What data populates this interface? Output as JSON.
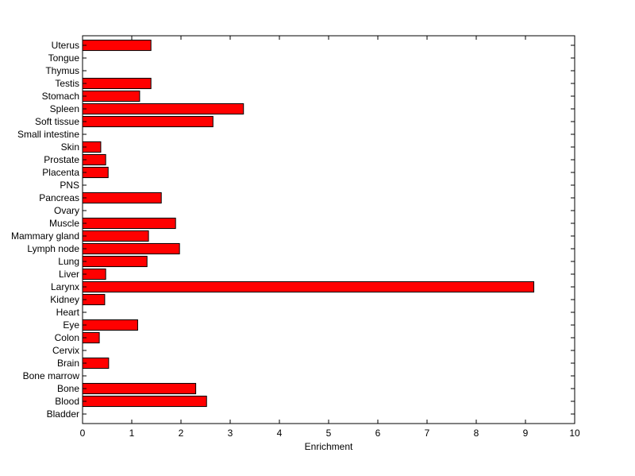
{
  "chart_data": {
    "type": "bar",
    "orientation": "horizontal",
    "title": "",
    "xlabel": "Enrichment",
    "ylabel": "",
    "xlim": [
      0,
      10
    ],
    "xticks": [
      0,
      1,
      2,
      3,
      4,
      5,
      6,
      7,
      8,
      9,
      10
    ],
    "grid": false,
    "bar_color": "#ff0000",
    "edge_color": "#000000",
    "categories": [
      "Uterus",
      "Tongue",
      "Thymus",
      "Testis",
      "Stomach",
      "Spleen",
      "Soft tissue",
      "Small intestine",
      "Skin",
      "Prostate",
      "Placenta",
      "PNS",
      "Pancreas",
      "Ovary",
      "Muscle",
      "Mammary gland",
      "Lymph node",
      "Lung",
      "Liver",
      "Larynx",
      "Kidney",
      "Heart",
      "Eye",
      "Colon",
      "Cervix",
      "Brain",
      "Bone marrow",
      "Bone",
      "Blood",
      "Bladder"
    ],
    "values": [
      1.39,
      0,
      0,
      1.39,
      1.16,
      3.27,
      2.65,
      0,
      0.37,
      0.47,
      0.52,
      0,
      1.6,
      0,
      1.89,
      1.34,
      1.97,
      1.31,
      0.47,
      9.17,
      0.45,
      0,
      1.12,
      0.34,
      0,
      0.53,
      0,
      2.3,
      2.52,
      0
    ]
  }
}
